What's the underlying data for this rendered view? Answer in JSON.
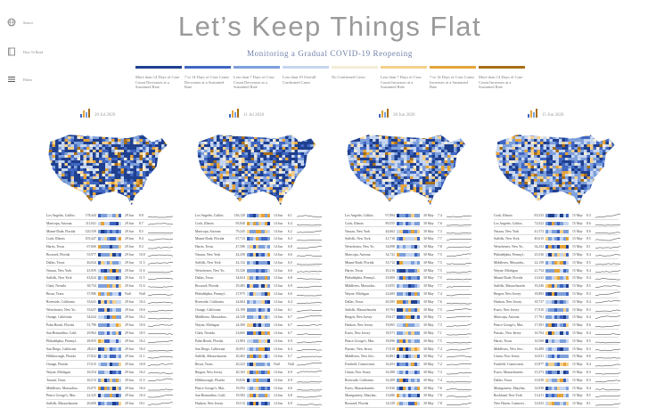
{
  "sidebar": {
    "items": [
      {
        "icon": "globe-icon",
        "label": "Source"
      },
      {
        "icon": "book-icon",
        "label": "How To Read"
      },
      {
        "icon": "menu-icon",
        "label": "Filters"
      }
    ]
  },
  "header": {
    "title": "Let’s Keep Things Flat",
    "subtitle": "Monitoring a Gradual COVID-19 Reopening"
  },
  "legend": [
    {
      "color": "#1f3f8f",
      "label": "More than 14 Days of Case Count Decreases at a Sustained Rate"
    },
    {
      "color": "#3f66c2",
      "label": "7 to 14 Days of Case Count Decreases at a Sustained Rate"
    },
    {
      "color": "#7ea0db",
      "label": "Less than 7 Days of Case Count Decreases at a Sustained Rate"
    },
    {
      "color": "#c6d6f0",
      "label": "Less than 10 Overall Confirmed Cases"
    },
    {
      "color": "#f3ecd8",
      "label": "No Confirmed Cases"
    },
    {
      "color": "#f5cf8a",
      "label": "Less than 7 Days of Case Count Increases at a Sustained Rate"
    },
    {
      "color": "#e6a43a",
      "label": "7 to 14 Days of Case Count Increases at a Sustained Rate"
    },
    {
      "color": "#a86e15",
      "label": "More than 14 Days of Case Count Increases at a Sustained Rate"
    }
  ],
  "panels": [
    {
      "date": "20 Jul 2020",
      "rows": [
        [
          "Los Angeles, Califor..",
          "178,444",
          "29 Jun",
          "8.8"
        ],
        [
          "Maricopa, Arizona",
          "111,041",
          "29 Jun",
          "8.7"
        ],
        [
          "Miami-Dade, Florida",
          "120,339",
          "29 Jun",
          "8.5"
        ],
        [
          "Cook, Illinois",
          "105,447",
          "29 Jun",
          "8.4"
        ],
        [
          "Harris, Texas",
          "67,660",
          "29 Jun",
          "8.3"
        ],
        [
          "Broward, Florida",
          "53,977",
          "29 Jun",
          "10.8"
        ],
        [
          "Dallas, Texas",
          "46,024",
          "29 Jun",
          "11.5"
        ],
        [
          "Nassau, New York",
          "43,959",
          "29 Jun",
          "11.6"
        ],
        [
          "Suffolk, New York",
          "43,024",
          "29 Jun",
          "11.5"
        ],
        [
          "Clark, Nevada",
          "38,734",
          "29 Jun",
          "11.6"
        ],
        [
          "Bexar, Texas",
          "37,986",
          "Null",
          "Null"
        ],
        [
          "Riverside, California",
          "35,641",
          "29 Jun",
          "10.4"
        ],
        [
          "Westchester, New Yo..",
          "35,637",
          "29 Jun",
          "10.6"
        ],
        [
          "Orange, California",
          "34,624",
          "29 Jun",
          "10.2"
        ],
        [
          "Palm Beach, Florida",
          "31,790",
          "29 Jun",
          "10.6"
        ],
        [
          "San Bernardino, Calif..",
          "29,962",
          "29 Jun",
          "10.5"
        ],
        [
          "Philadelphia, Pennsyl..",
          "28,955",
          "29 Jun",
          "10.2"
        ],
        [
          "San Diego, California",
          "28,411",
          "29 Jun",
          "10.2"
        ],
        [
          "Hillsborough, Florida",
          "27,822",
          "29 Jun",
          "11.1"
        ],
        [
          "Orange, Florida",
          "27,615",
          "29 Jun",
          "10.8"
        ],
        [
          "Wayne, Michigan",
          "26,554",
          "29 Jun",
          "10.2"
        ],
        [
          "Tarrant, Texas",
          "26,513",
          "29 Jun",
          "11.5"
        ],
        [
          "Middlesex, Massachus..",
          "25,075",
          "29 Jun",
          "10.4"
        ],
        [
          "Prince George's, Mar..",
          "22,325",
          "29 Jun",
          "10.4"
        ],
        [
          "Suffolk, Massachusetts",
          "20,600",
          "29 Jun",
          "10.1"
        ]
      ]
    },
    {
      "date": "11 Jul 2020",
      "rows": [
        [
          "Los Angeles, Califor..",
          "136,129",
          "14 Jun",
          "6.1"
        ],
        [
          "Cook, Illinois",
          "95,840",
          "14 Jun",
          "6.4"
        ],
        [
          "Maricopa, Arizona",
          "79,245",
          "14 Jun",
          "6.2"
        ],
        [
          "Miami-Dade, Florida",
          "67,713",
          "14 Jun",
          "6.3"
        ],
        [
          "Harris, Texas",
          "47,586",
          "14 Jun",
          "6.8"
        ],
        [
          "Nassau, New York",
          "42,258",
          "14 Jun",
          "6.6"
        ],
        [
          "Suffolk, New York",
          "42,132",
          "14 Jun",
          "6.5"
        ],
        [
          "Westchester, New Yo..",
          "35,326",
          "14 Jun",
          "6.6"
        ],
        [
          "Dallas, Texas",
          "34,654",
          "14 Jun",
          "6.8"
        ],
        [
          "Broward, Florida",
          "29,483",
          "14 Jun",
          "6.9"
        ],
        [
          "Philadelphia, Pennsyl..",
          "27,975",
          "14 Jun",
          "6.6"
        ],
        [
          "Riverside, California",
          "24,604",
          "14 Jun",
          "6.4"
        ],
        [
          "Orange, California",
          "23,199",
          "14 Jun",
          "6.1"
        ],
        [
          "Middlesex, Massachus..",
          "24,528",
          "14 Jun",
          "6.7"
        ],
        [
          "Wayne, Michigan",
          "24,300",
          "14 Jun",
          "6.7"
        ],
        [
          "Clark, Nevada",
          "23,665",
          "14 Jun",
          "6.7"
        ],
        [
          "Palm Beach, Florida",
          "21,803",
          "14 Jun",
          "6.9"
        ],
        [
          "San Diego, California",
          "20,831",
          "14 Jun",
          "6.4"
        ],
        [
          "Suffolk, Massachusetts",
          "20,463",
          "14 Jun",
          "6.7"
        ],
        [
          "Bexar, Texas",
          "20,223",
          "Null",
          "Null"
        ],
        [
          "Bergen, New Jersey",
          "20,163",
          "14 Jun",
          "6.9"
        ],
        [
          "Hillsborough, Florida",
          "19,826",
          "14 Jun",
          "6.9"
        ],
        [
          "Prince George's, Mar..",
          "19,592",
          "14 Jun",
          "6.6"
        ],
        [
          "San Bernardino, Calif..",
          "19,582",
          "14 Jun",
          "6.8"
        ],
        [
          "Hudson, New Jersey",
          "19,514",
          "14 Jun",
          "6.9"
        ]
      ]
    },
    {
      "date": "28 Jun 2020",
      "rows": [
        [
          "Los Angeles, Califor..",
          "97,894",
          "30 May",
          "7.4"
        ],
        [
          "Cook, Illinois",
          "89,555",
          "30 May",
          "7.6"
        ],
        [
          "Nassau, New York",
          "44,662",
          "30 May",
          "7.3"
        ],
        [
          "Suffolk, New York",
          "41,716",
          "30 May",
          "7.7"
        ],
        [
          "Westchester, New Yo..",
          "34,898",
          "30 May",
          "7.8"
        ],
        [
          "Maricopa, Arizona",
          "34,722",
          "30 May",
          "7.5"
        ],
        [
          "Miami-Dade, Florida",
          "33,712",
          "30 May",
          "7.5"
        ],
        [
          "Harris, Texas",
          "29,216",
          "30 May",
          "7.5"
        ],
        [
          "Philadelphia, Pennsyl..",
          "25,800",
          "30 May",
          "7.5"
        ],
        [
          "Middlesex, Massachu..",
          "23,855",
          "30 May",
          "7.7"
        ],
        [
          "Wayne, Michigan",
          "22,683",
          "30 May",
          "7.4"
        ],
        [
          "Dallas, Texas",
          "20,585",
          "30 May",
          "7.6"
        ],
        [
          "Suffolk, Massachusetts",
          "19,763",
          "30 May",
          "7.5"
        ],
        [
          "Bergen, New Jersey",
          "19,617",
          "30 May",
          "7.1"
        ],
        [
          "Hudson, New Jersey",
          "19,065",
          "30 May",
          "7.3"
        ],
        [
          "Essex, New Jersey",
          "18,571",
          "30 May",
          "7.1"
        ],
        [
          "Prince George's, Mar..",
          "18,096",
          "30 May",
          "7.5"
        ],
        [
          "Passaic, New Jersey",
          "17,018",
          "30 May",
          "7.4"
        ],
        [
          "Middlesex, New Jers..",
          "16,861",
          "30 May",
          "7.2"
        ],
        [
          "Fairfield, Connecticut",
          "16,453",
          "30 May",
          "7.2"
        ],
        [
          "Union, New Jersey",
          "16,388",
          "30 May",
          "7.3"
        ],
        [
          "Riverside, California",
          "16,209",
          "30 May",
          "7.4"
        ],
        [
          "Essex, Massachusetts",
          "15,936",
          "30 May",
          "7.6"
        ],
        [
          "Montgomery, Marylan..",
          "15,686",
          "30 May",
          "7.8"
        ],
        [
          "Broward, Florida",
          "14,529",
          "30 May",
          "7.8"
        ]
      ]
    },
    {
      "date": "15 Jun 2020",
      "rows": [
        [
          "Cook, Illinois",
          "83,533",
          "15 May",
          "8.3"
        ],
        [
          "Los Angeles, Califor..",
          "72,022",
          "15 May",
          "8.6"
        ],
        [
          "Nassau, New York",
          "41,572",
          "15 May",
          "8.0"
        ],
        [
          "Suffolk, New York",
          "40,615",
          "15 May",
          "8.5"
        ],
        [
          "Westchester, New Yo..",
          "34,252",
          "15 May",
          "8.1"
        ],
        [
          "Philadelphia, Pennsyl..",
          "23,536",
          "15 May",
          "8.4"
        ],
        [
          "Middlesex, Massachu..",
          "22,158",
          "15 May",
          "8.5"
        ],
        [
          "Wayne, Michigan",
          "21,754",
          "15 May",
          "8.4"
        ],
        [
          "Miami-Dade, Florida",
          "21,632",
          "15 May",
          "8.4"
        ],
        [
          "Suffolk, Massachusetts",
          "19,246",
          "15 May",
          "8.5"
        ],
        [
          "Bergen, New Jersey",
          "18,883",
          "15 May",
          "8.3"
        ],
        [
          "Hudson, New Jersey",
          "18,727",
          "15 May",
          "8.4"
        ],
        [
          "Essex, New Jersey",
          "17,910",
          "15 May",
          "8.3"
        ],
        [
          "Maricopa, Arizona",
          "17,761",
          "15 May",
          "8.4"
        ],
        [
          "Prince George's, Mar..",
          "17,581",
          "15 May",
          "8.6"
        ],
        [
          "Passaic, New Jersey",
          "16,704",
          "15 May",
          "8.4"
        ],
        [
          "Harris, Texas",
          "16,568",
          "15 May",
          "8.5"
        ],
        [
          "Middlesex, New Jers..",
          "16,488",
          "15 May",
          "8.3"
        ],
        [
          "Union, New Jersey",
          "16,031",
          "15 May",
          "8.6"
        ],
        [
          "Fairfield, Connecticut",
          "15,977",
          "15 May",
          "8.4"
        ],
        [
          "Essex, Massachusetts",
          "15,373",
          "15 May",
          "8.3"
        ],
        [
          "Dallas, Texas",
          "15,038",
          "15 May",
          "8.3"
        ],
        [
          "Montgomery, Marylan..",
          "14,938",
          "15 May",
          "8.4"
        ],
        [
          "Rockland, New York",
          "13,411",
          "15 May",
          "8.5"
        ],
        [
          "New Haven, Connecti..",
          "12,832",
          "15 May",
          "8.1"
        ]
      ]
    }
  ]
}
